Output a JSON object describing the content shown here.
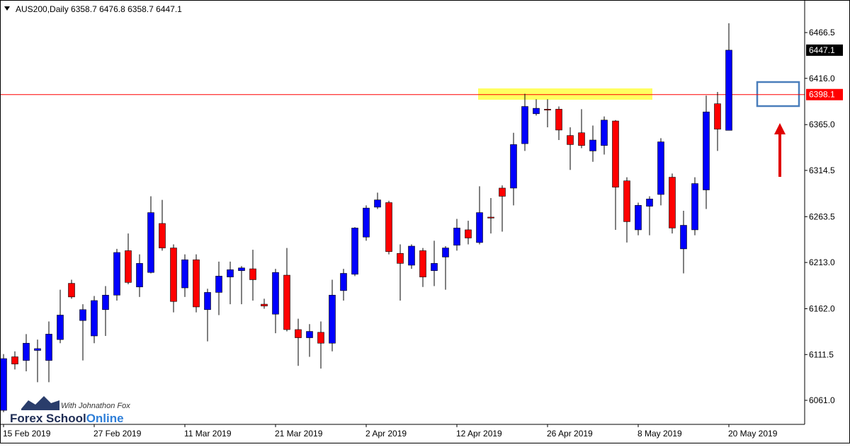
{
  "chart_data": {
    "type": "candlestick",
    "title": "AUS200,Daily  6358.7 6476.8 6358.7 6447.1",
    "categories": [
      "15 Feb 2019",
      null,
      null,
      null,
      null,
      null,
      null,
      null,
      "27 Feb 2019",
      null,
      null,
      null,
      null,
      null,
      null,
      null,
      "11 Mar 2019",
      null,
      null,
      null,
      null,
      null,
      null,
      null,
      "21 Mar 2019",
      null,
      null,
      null,
      null,
      null,
      null,
      null,
      "2 Apr 2019",
      null,
      null,
      null,
      null,
      null,
      null,
      null,
      "12 Apr 2019",
      null,
      null,
      null,
      null,
      null,
      null,
      null,
      "26 Apr 2019",
      null,
      null,
      null,
      null,
      null,
      null,
      null,
      "8 May 2019",
      null,
      null,
      null,
      null,
      null,
      null,
      null,
      "20 May 2019"
    ],
    "open": [
      6050,
      6109,
      6105,
      6116,
      6105,
      6128,
      6190,
      6149,
      6132,
      6161,
      6177,
      6226,
      6186,
      6202,
      6256,
      6229,
      6185,
      6216,
      6161,
      6180,
      6197,
      6204,
      6206,
      6167,
      6156,
      6199,
      6139,
      6130,
      6136,
      6124,
      6182,
      6200,
      6241,
      6274,
      6279,
      6223,
      6210,
      6226,
      6204,
      6219,
      6232,
      6249,
      6235,
      6263,
      6295,
      6295,
      6344,
      6377,
      6382,
      6382,
      6353,
      6356,
      6336,
      6342,
      6369,
      6303,
      6249,
      6275,
      6288,
      6307,
      6228,
      6249,
      6293,
      6388,
      6358.7
    ],
    "high": [
      6112,
      6115,
      6134,
      6128,
      6148,
      6183,
      6194,
      6167,
      6176,
      6187,
      6228,
      6245,
      6222,
      6286,
      6282,
      6233,
      6222,
      6222,
      6184,
      6214,
      6214,
      6209,
      6227,
      6173,
      6206,
      6229,
      6151,
      6145,
      6148,
      6194,
      6206,
      6252,
      6276,
      6290,
      6281,
      6233,
      6233,
      6229,
      6237,
      6231,
      6261,
      6259,
      6297,
      6284,
      6298,
      6356,
      6399,
      6393,
      6393,
      6385,
      6362,
      6382,
      6364,
      6374,
      6370,
      6307,
      6279,
      6286,
      6350,
      6311,
      6270,
      6307,
      6397,
      6401,
      6476.8
    ],
    "low": [
      6048,
      6095,
      6093,
      6081,
      6081,
      6124,
      6173,
      6105,
      6124,
      6132,
      6171,
      6189,
      6175,
      6201,
      6226,
      6158,
      6175,
      6158,
      6126,
      6155,
      6167,
      6167,
      6171,
      6162,
      6135,
      6137,
      6099,
      6109,
      6096,
      6115,
      6171,
      6198,
      6237,
      6272,
      6222,
      6171,
      6206,
      6186,
      6187,
      6183,
      6226,
      6233,
      6233,
      6245,
      6247,
      6276,
      6336,
      6375,
      6362,
      6348,
      6315,
      6339,
      6324,
      6332,
      6249,
      6235,
      6243,
      6243,
      6276,
      6245,
      6201,
      6243,
      6272,
      6336,
      6358.7
    ],
    "close": [
      6107,
      6101,
      6124,
      6118,
      6134,
      6155,
      6175,
      6161,
      6171,
      6177,
      6224,
      6191,
      6212,
      6268,
      6229,
      6170,
      6216,
      6164,
      6180,
      6198,
      6205,
      6207,
      6194,
      6165,
      6202,
      6139,
      6130,
      6137,
      6124,
      6177,
      6201,
      6251,
      6273,
      6282,
      6225,
      6212,
      6231,
      6197,
      6212,
      6229,
      6251,
      6240,
      6268,
      6262,
      6286,
      6343,
      6385,
      6383,
      6381,
      6359,
      6343,
      6342,
      6348,
      6370,
      6296,
      6258,
      6276,
      6283,
      6346,
      6251,
      6254,
      6300,
      6379,
      6360,
      6447.1
    ],
    "up_color": "#0000ff",
    "down_color": "#ff0000",
    "ylim": [
      6034.5,
      6502.4
    ],
    "yticks": [
      {
        "value": 6061,
        "label": "6061.0"
      },
      6111.5,
      {
        "value": 6162,
        "label": "6162.0"
      },
      {
        "value": 6213,
        "label": "6213.0"
      },
      6263.5,
      6314.5,
      {
        "value": 6365,
        "label": "6365.0"
      },
      {
        "value": 6416,
        "label": "6416.0"
      },
      6466.5
    ],
    "hline": {
      "value": 6398.1,
      "color": "#ff0000"
    },
    "grid": false
  },
  "logo": {
    "tagline": "With Johnathon Fox",
    "name": "Forex School",
    "accent": "Online"
  }
}
